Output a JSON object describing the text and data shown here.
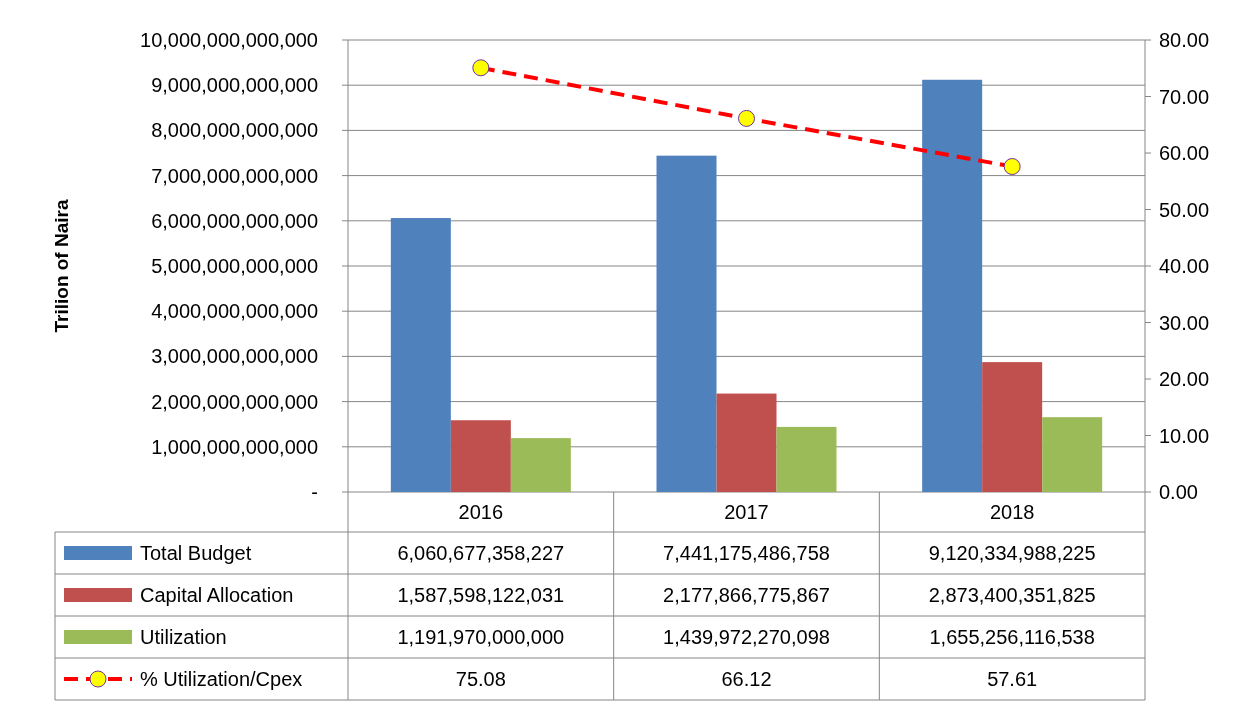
{
  "chart_data": {
    "type": "bar",
    "ylabel": "Trilion of Naira",
    "categories": [
      "2016",
      "2017",
      "2018"
    ],
    "series": [
      {
        "name": "Total Budget",
        "color": "#4f81bd",
        "values": [
          6060677358227,
          7441175486758,
          9120334988225
        ],
        "value_labels": [
          "6,060,677,358,227",
          "7,441,175,486,758",
          "9,120,334,988,225"
        ]
      },
      {
        "name": "Capital Allocation",
        "color": "#c0504d",
        "values": [
          1587598122031,
          2177866775867,
          2873400351825
        ],
        "value_labels": [
          "1,587,598,122,031",
          "2,177,866,775,867",
          "2,873,400,351,825"
        ]
      },
      {
        "name": "Utilization",
        "color": "#9bbb59",
        "values": [
          1191970000000,
          1439972270098,
          1655256116538
        ],
        "value_labels": [
          "1,191,970,000,000",
          "1,439,972,270,098",
          "1,655,256,116,538"
        ]
      },
      {
        "name": "% Utilization/Cpex",
        "type": "line",
        "axis": "y2",
        "color": "#ff0000",
        "line_style": "dashed",
        "marker": "circle",
        "values": [
          75.08,
          66.12,
          57.61
        ],
        "value_labels": [
          "75.08",
          "66.12",
          "57.61"
        ]
      }
    ],
    "ylim": [
      0,
      10000000000000
    ],
    "yticks": [
      {
        "value": 0,
        "label": "-"
      },
      {
        "value": 1000000000000,
        "label": "1,000,000,000,000"
      },
      {
        "value": 2000000000000,
        "label": "2,000,000,000,000"
      },
      {
        "value": 3000000000000,
        "label": "3,000,000,000,000"
      },
      {
        "value": 4000000000000,
        "label": "4,000,000,000,000"
      },
      {
        "value": 5000000000000,
        "label": "5,000,000,000,000"
      },
      {
        "value": 6000000000000,
        "label": "6,000,000,000,000"
      },
      {
        "value": 7000000000000,
        "label": "7,000,000,000,000"
      },
      {
        "value": 8000000000000,
        "label": "8,000,000,000,000"
      },
      {
        "value": 9000000000000,
        "label": "9,000,000,000,000"
      },
      {
        "value": 10000000000000,
        "label": "10,000,000,000,000"
      }
    ],
    "y2lim": [
      0,
      80
    ],
    "y2ticks": [
      {
        "value": 0,
        "label": "0.00"
      },
      {
        "value": 10,
        "label": "10.00"
      },
      {
        "value": 20,
        "label": "20.00"
      },
      {
        "value": 30,
        "label": "30.00"
      },
      {
        "value": 40,
        "label": "40.00"
      },
      {
        "value": 50,
        "label": "50.00"
      },
      {
        "value": 60,
        "label": "60.00"
      },
      {
        "value": 70,
        "label": "70.00"
      },
      {
        "value": 80,
        "label": "80.00"
      }
    ],
    "grid": "y",
    "legend": "bottom"
  }
}
